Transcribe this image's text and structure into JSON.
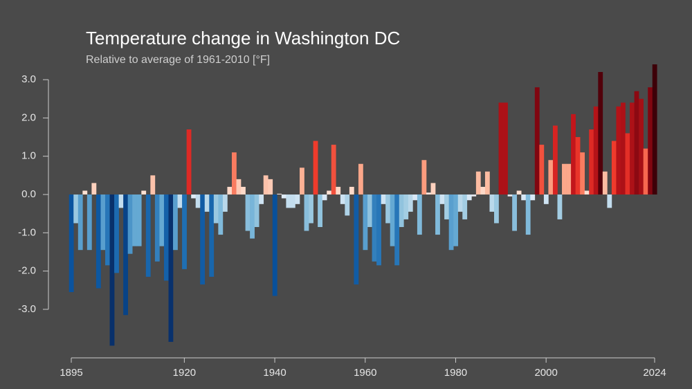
{
  "chart_data": {
    "type": "bar",
    "title": "Temperature change in Washington DC",
    "subtitle": "Relative to average of 1961-2010  [°F]",
    "x": [
      1895,
      1896,
      1897,
      1898,
      1899,
      1900,
      1901,
      1902,
      1903,
      1904,
      1905,
      1906,
      1907,
      1908,
      1909,
      1910,
      1911,
      1912,
      1913,
      1914,
      1915,
      1916,
      1917,
      1918,
      1919,
      1920,
      1921,
      1922,
      1923,
      1924,
      1925,
      1926,
      1927,
      1928,
      1929,
      1930,
      1931,
      1932,
      1933,
      1934,
      1935,
      1936,
      1937,
      1938,
      1939,
      1940,
      1941,
      1942,
      1943,
      1944,
      1945,
      1946,
      1947,
      1948,
      1949,
      1950,
      1951,
      1952,
      1953,
      1954,
      1955,
      1956,
      1957,
      1958,
      1959,
      1960,
      1961,
      1962,
      1963,
      1964,
      1965,
      1966,
      1967,
      1968,
      1969,
      1970,
      1971,
      1972,
      1973,
      1974,
      1975,
      1976,
      1977,
      1978,
      1979,
      1980,
      1981,
      1982,
      1983,
      1984,
      1985,
      1986,
      1987,
      1988,
      1989,
      1990,
      1991,
      1992,
      1993,
      1994,
      1995,
      1996,
      1997,
      1998,
      1999,
      2000,
      2001,
      2002,
      2003,
      2004,
      2005,
      2006,
      2007,
      2008,
      2009,
      2010,
      2011,
      2012,
      2013,
      2014,
      2015,
      2016,
      2017,
      2018,
      2019,
      2020,
      2021,
      2022,
      2023,
      2024
    ],
    "values": [
      -2.55,
      -0.75,
      -1.45,
      0.1,
      -1.45,
      0.3,
      -2.45,
      -1.45,
      -1.85,
      -3.95,
      -2.05,
      -0.35,
      -3.15,
      -1.55,
      -1.35,
      -1.35,
      0.1,
      -2.15,
      0.5,
      -1.75,
      -1.35,
      -2.25,
      -3.85,
      -1.45,
      -0.35,
      -1.95,
      1.7,
      -0.1,
      -0.35,
      -2.35,
      -0.45,
      -2.15,
      -0.75,
      -1.05,
      -0.45,
      0.2,
      1.1,
      0.4,
      0.2,
      -0.95,
      -1.15,
      -0.85,
      -0.25,
      0.5,
      0.4,
      -2.65,
      0.02,
      -0.1,
      -0.35,
      -0.35,
      -0.25,
      0.7,
      -0.95,
      -0.75,
      1.4,
      -0.85,
      -0.15,
      0.1,
      1.3,
      0.2,
      -0.25,
      -0.55,
      0.2,
      -2.35,
      0.8,
      -1.45,
      -0.85,
      -1.75,
      -1.85,
      -0.25,
      -0.75,
      -1.35,
      -1.85,
      -0.85,
      -0.65,
      -0.45,
      -0.15,
      -1.05,
      0.9,
      0.05,
      0.3,
      -1.05,
      -0.25,
      -0.65,
      -1.45,
      -1.35,
      -0.45,
      -0.65,
      -0.15,
      -0.05,
      0.6,
      0.2,
      0.6,
      -0.45,
      -0.75,
      2.4,
      2.4,
      -0.05,
      -0.95,
      0.1,
      -0.15,
      -1.05,
      -0.15,
      2.8,
      1.3,
      -0.25,
      0.9,
      1.8,
      -0.65,
      0.8,
      0.8,
      2.1,
      1.5,
      1.1,
      0.1,
      1.7,
      2.3,
      3.2,
      0.6,
      -0.35,
      1.4,
      2.3,
      2.4,
      1.6,
      2.4,
      2.7,
      2.5,
      1.2,
      2.8,
      3.4
    ],
    "colorscale": [
      [
        -3.9,
        "#08306b"
      ],
      [
        -2.6,
        "#08519c"
      ],
      [
        -1.9,
        "#2171b5"
      ],
      [
        -1.3,
        "#6baed6"
      ],
      [
        -0.7,
        "#9ecae1"
      ],
      [
        -0.1,
        "#deebf7"
      ],
      [
        0.1,
        "#fee0d2"
      ],
      [
        0.6,
        "#fcbba1"
      ],
      [
        1.0,
        "#fc9272"
      ],
      [
        1.4,
        "#ef3b2c"
      ],
      [
        2.0,
        "#cb181d"
      ],
      [
        2.5,
        "#a50f15"
      ],
      [
        3.0,
        "#67000d"
      ],
      [
        3.4,
        "#3d0008"
      ]
    ],
    "xlim": [
      1895,
      2024
    ],
    "xticks": [
      1895,
      1920,
      1940,
      1960,
      1980,
      2000,
      2024
    ],
    "ylim": [
      -4.3,
      3.5
    ],
    "yticks": [
      {
        "value": 3,
        "label": "3.0"
      },
      {
        "value": 2,
        "label": "2.0"
      },
      {
        "value": 1,
        "label": "1.0"
      },
      {
        "value": 0,
        "label": "0.0"
      },
      {
        "value": -1,
        "label": "-1.0"
      },
      {
        "value": -2,
        "label": "-2.0"
      },
      {
        "value": -3,
        "label": "-3.0"
      }
    ]
  }
}
